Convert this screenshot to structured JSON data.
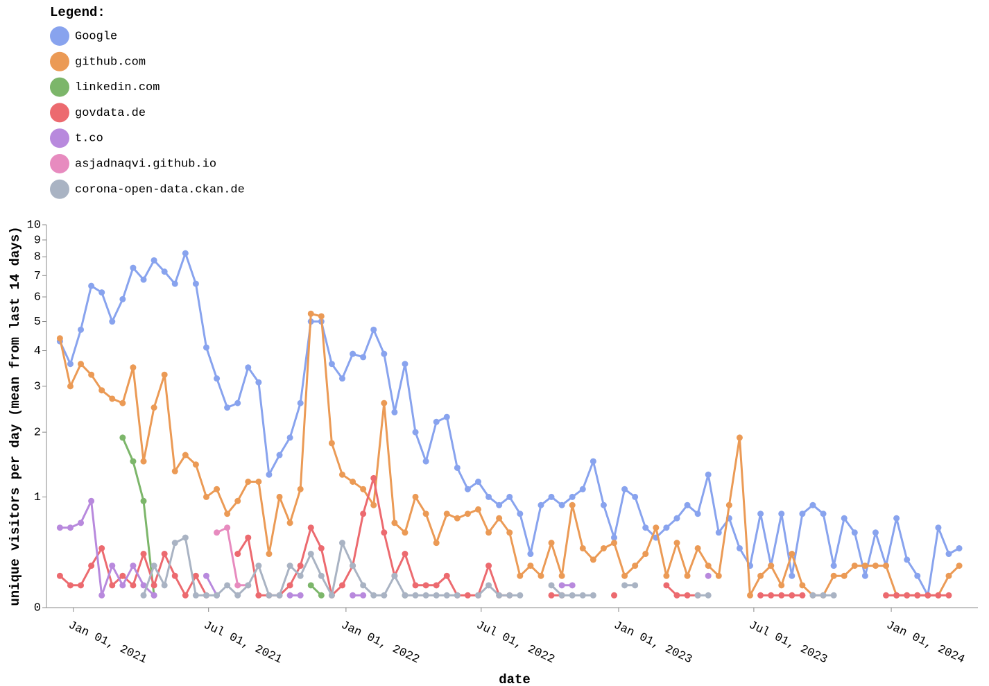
{
  "chart_data": {
    "type": "line",
    "legend_title": "Legend:",
    "legend": "top-left",
    "x_label": "date",
    "y_label": "unique visitors per day (mean from last 14 days)",
    "y_scale": "symlog",
    "xlim": [
      "2020-11-26",
      "2024-04-26"
    ],
    "xticks": [
      {
        "value": "2021-01-01",
        "label": "Jan 01, 2021"
      },
      {
        "value": "2021-07-01",
        "label": "Jul 01, 2021"
      },
      {
        "value": "2022-01-01",
        "label": "Jan 01, 2022"
      },
      {
        "value": "2022-07-01",
        "label": "Jul 01, 2022"
      },
      {
        "value": "2023-01-01",
        "label": "Jan 01, 2023"
      },
      {
        "value": "2023-07-01",
        "label": "Jul 01, 2023"
      },
      {
        "value": "2024-01-01",
        "label": "Jan 01, 2024"
      }
    ],
    "ylim": [
      0,
      10
    ],
    "yticks": [
      0,
      1,
      2,
      3,
      4,
      5,
      6,
      7,
      8,
      9,
      10
    ],
    "x": [
      "2020-12-14",
      "2020-12-28",
      "2021-01-11",
      "2021-01-25",
      "2021-02-08",
      "2021-02-22",
      "2021-03-08",
      "2021-03-22",
      "2021-04-05",
      "2021-04-19",
      "2021-05-03",
      "2021-05-17",
      "2021-05-31",
      "2021-06-14",
      "2021-06-28",
      "2021-07-12",
      "2021-07-26",
      "2021-08-09",
      "2021-08-23",
      "2021-09-06",
      "2021-09-20",
      "2021-10-04",
      "2021-10-18",
      "2021-11-01",
      "2021-11-15",
      "2021-11-29",
      "2021-12-13",
      "2021-12-27",
      "2022-01-10",
      "2022-01-24",
      "2022-02-07",
      "2022-02-21",
      "2022-03-07",
      "2022-03-21",
      "2022-04-04",
      "2022-04-18",
      "2022-05-02",
      "2022-05-16",
      "2022-05-30",
      "2022-06-13",
      "2022-06-27",
      "2022-07-11",
      "2022-07-25",
      "2022-08-08",
      "2022-08-22",
      "2022-09-05",
      "2022-09-19",
      "2022-10-03",
      "2022-10-17",
      "2022-10-31",
      "2022-11-14",
      "2022-11-28",
      "2022-12-12",
      "2022-12-26",
      "2023-01-09",
      "2023-01-23",
      "2023-02-06",
      "2023-02-20",
      "2023-03-06",
      "2023-03-20",
      "2023-04-03",
      "2023-04-17",
      "2023-05-01",
      "2023-05-15",
      "2023-05-29",
      "2023-06-12",
      "2023-06-26",
      "2023-07-10",
      "2023-07-24",
      "2023-08-07",
      "2023-08-21",
      "2023-09-04",
      "2023-09-18",
      "2023-10-02",
      "2023-10-16",
      "2023-10-30",
      "2023-11-13",
      "2023-11-27",
      "2023-12-11",
      "2023-12-25",
      "2024-01-08",
      "2024-01-22",
      "2024-02-05",
      "2024-02-19",
      "2024-03-04",
      "2024-03-18",
      "2024-04-01"
    ],
    "series": [
      {
        "name": "Google",
        "color": "#88a3ee",
        "values": [
          4.3,
          3.6,
          4.7,
          6.5,
          6.2,
          5.0,
          5.9,
          7.4,
          6.8,
          7.8,
          7.2,
          6.6,
          8.2,
          6.6,
          4.1,
          3.2,
          2.5,
          2.6,
          3.5,
          3.1,
          1.3,
          1.6,
          1.9,
          2.6,
          5.0,
          5.0,
          3.6,
          3.2,
          3.9,
          3.8,
          4.7,
          3.9,
          2.4,
          3.6,
          2.0,
          1.5,
          2.2,
          2.3,
          1.4,
          1.1,
          1.2,
          1.0,
          0.9,
          1.0,
          0.8,
          0.4,
          0.9,
          1.0,
          0.9,
          1.0,
          1.1,
          1.5,
          0.9,
          0.55,
          1.1,
          1.0,
          0.65,
          0.55,
          0.65,
          0.75,
          0.9,
          0.8,
          1.3,
          0.6,
          0.75,
          0.45,
          0.3,
          0.8,
          0.3,
          0.8,
          0.22,
          0.8,
          0.9,
          0.8,
          0.3,
          0.75,
          0.6,
          0.22,
          0.6,
          0.3,
          0.75,
          0.35,
          0.22,
          0.08,
          0.65,
          0.4,
          0.45
        ]
      },
      {
        "name": "github.com",
        "color": "#eb9a55",
        "values": [
          4.4,
          3.0,
          3.6,
          3.3,
          2.9,
          2.7,
          2.6,
          3.5,
          1.5,
          2.5,
          3.3,
          1.35,
          1.6,
          1.45,
          1.0,
          1.1,
          0.8,
          0.95,
          1.2,
          1.2,
          0.4,
          1.0,
          0.7,
          1.1,
          5.3,
          5.2,
          1.8,
          1.3,
          1.2,
          1.1,
          0.9,
          2.6,
          0.7,
          0.6,
          1.0,
          0.8,
          0.5,
          0.8,
          0.75,
          0.8,
          0.85,
          0.6,
          0.75,
          0.6,
          0.22,
          0.3,
          0.22,
          0.5,
          0.22,
          0.9,
          0.45,
          0.35,
          0.45,
          0.5,
          0.22,
          0.3,
          0.4,
          0.65,
          0.22,
          0.5,
          0.22,
          0.45,
          0.3,
          0.22,
          0.9,
          1.9,
          0.08,
          0.22,
          0.3,
          0.15,
          0.4,
          0.15,
          0.08,
          0.08,
          0.22,
          0.22,
          0.3,
          0.3,
          0.3,
          0.3,
          0.08,
          0.08,
          0.08,
          0.08,
          0.08,
          0.22,
          0.3
        ]
      },
      {
        "name": "linkedin.com",
        "color": "#7cb66a",
        "values": [
          null,
          null,
          null,
          null,
          null,
          null,
          1.9,
          1.5,
          0.95,
          0.08,
          null,
          null,
          null,
          null,
          null,
          null,
          null,
          null,
          null,
          null,
          null,
          null,
          null,
          null,
          0.15,
          0.08,
          null,
          null,
          null,
          null,
          null,
          null,
          null,
          0.08,
          null,
          null,
          null,
          null,
          null,
          null,
          null,
          null,
          null,
          null,
          null,
          null,
          null,
          null,
          null,
          null,
          null,
          null,
          null,
          null,
          null,
          null,
          null,
          null,
          null,
          null,
          null,
          null,
          null,
          null,
          null,
          null,
          null,
          null,
          null,
          null,
          null,
          null,
          null,
          null,
          null,
          null,
          null,
          null,
          null,
          null,
          null,
          null,
          null,
          null,
          null,
          null,
          null
        ]
      },
      {
        "name": "govdata.de",
        "color": "#ec6a6f",
        "values": [
          0.22,
          0.15,
          0.15,
          0.3,
          0.45,
          0.15,
          0.22,
          0.15,
          0.4,
          0.15,
          0.4,
          0.22,
          0.08,
          0.22,
          0.08,
          null,
          null,
          0.4,
          0.55,
          0.08,
          0.08,
          0.08,
          0.15,
          0.3,
          0.65,
          0.45,
          0.08,
          0.15,
          0.3,
          0.8,
          1.25,
          0.6,
          0.22,
          0.4,
          0.15,
          0.15,
          0.15,
          0.22,
          0.08,
          0.08,
          0.08,
          0.3,
          0.08,
          0.08,
          null,
          null,
          null,
          0.08,
          0.08,
          null,
          null,
          null,
          null,
          0.08,
          null,
          null,
          null,
          null,
          0.15,
          0.08,
          0.08,
          0.08,
          null,
          null,
          null,
          null,
          null,
          0.08,
          0.08,
          0.08,
          0.08,
          0.08,
          null,
          null,
          null,
          null,
          null,
          null,
          null,
          0.08,
          0.08,
          0.08,
          0.08,
          0.08,
          0.08,
          0.08,
          null
        ]
      },
      {
        "name": "t.co",
        "color": "#b889dd",
        "values": [
          0.65,
          0.65,
          0.7,
          0.95,
          0.08,
          0.3,
          0.15,
          0.3,
          0.15,
          0.08,
          null,
          null,
          null,
          null,
          0.22,
          0.08,
          null,
          null,
          null,
          null,
          null,
          null,
          0.08,
          0.08,
          null,
          null,
          null,
          null,
          0.08,
          0.08,
          null,
          null,
          null,
          null,
          null,
          null,
          null,
          null,
          null,
          null,
          null,
          null,
          null,
          null,
          null,
          null,
          null,
          null,
          0.15,
          0.15,
          null,
          null,
          null,
          null,
          null,
          null,
          null,
          null,
          null,
          null,
          null,
          null,
          0.22,
          null,
          null,
          null,
          null,
          null,
          null,
          null,
          null,
          null,
          null,
          null,
          null,
          null,
          null,
          null,
          null,
          null,
          null,
          null,
          null,
          null,
          null,
          null,
          null
        ]
      },
      {
        "name": "asjadnaqvi.github.io",
        "color": "#e78bbf",
        "values": [
          null,
          null,
          null,
          null,
          null,
          null,
          null,
          null,
          null,
          null,
          null,
          null,
          null,
          null,
          null,
          0.6,
          0.65,
          0.15,
          0.15,
          null,
          null,
          null,
          null,
          null,
          null,
          null,
          null,
          null,
          null,
          null,
          null,
          null,
          null,
          null,
          null,
          null,
          null,
          null,
          null,
          null,
          null,
          null,
          null,
          null,
          null,
          null,
          null,
          null,
          null,
          null,
          null,
          null,
          null,
          null,
          null,
          null,
          null,
          null,
          null,
          null,
          null,
          null,
          null,
          null,
          null,
          null,
          null,
          null,
          null,
          null,
          null,
          null,
          null,
          null,
          null,
          null,
          null,
          null,
          null,
          null,
          null,
          null,
          null,
          null,
          null,
          null,
          null
        ]
      },
      {
        "name": "corona-open-data.ckan.de",
        "color": "#a9b3c3",
        "values": [
          null,
          null,
          null,
          null,
          null,
          null,
          null,
          null,
          0.08,
          0.3,
          0.15,
          0.5,
          0.55,
          0.08,
          0.08,
          0.08,
          0.15,
          0.08,
          0.15,
          0.3,
          0.08,
          0.08,
          0.3,
          0.22,
          0.4,
          0.22,
          0.08,
          0.5,
          0.3,
          0.15,
          0.08,
          0.08,
          0.22,
          0.08,
          0.08,
          0.08,
          0.08,
          0.08,
          0.08,
          null,
          0.08,
          0.15,
          0.08,
          0.08,
          0.08,
          null,
          null,
          0.15,
          0.08,
          0.08,
          0.08,
          0.08,
          null,
          null,
          0.15,
          0.15,
          null,
          null,
          null,
          null,
          null,
          0.08,
          0.08,
          null,
          null,
          null,
          null,
          null,
          null,
          null,
          null,
          null,
          0.08,
          0.08,
          0.08,
          null,
          null,
          null,
          null,
          null,
          null,
          null,
          null,
          null,
          null,
          null,
          null
        ]
      }
    ]
  }
}
